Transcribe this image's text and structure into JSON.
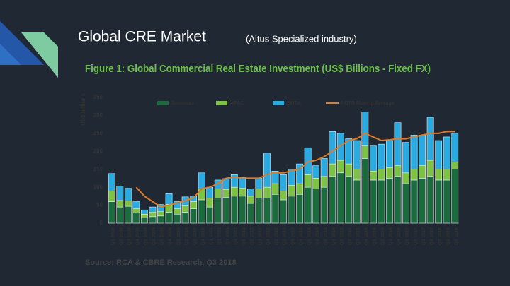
{
  "slide": {
    "title": "Global CRE Market",
    "subtitle": "(Altus Specialized industry)"
  },
  "chart_data": {
    "type": "bar",
    "stacked": true,
    "title": "Figure 1: Global Commercial Real Estate Investment (US$ Billions - Fixed FX)",
    "y_label": "US$ billions",
    "source": "Source: RCA & CBRE Research, Q3 2018",
    "categories": [
      "Q1 2008",
      "Q2 2008",
      "Q3 2008",
      "Q4 2008",
      "Q1 2009",
      "Q2 2009",
      "Q3 2009",
      "Q4 2009",
      "Q1 2010",
      "Q2 2010",
      "Q3 2010",
      "Q4 2010",
      "Q1 2011",
      "Q2 2011",
      "Q3 2011",
      "Q4 2011",
      "Q1 2012",
      "Q2 2012",
      "Q3 2012",
      "Q4 2012",
      "Q1 2013",
      "Q2 2013",
      "Q3 2013",
      "Q4 2013",
      "Q1 2014",
      "Q2 2014",
      "Q3 2014",
      "Q4 2014",
      "Q1 2015",
      "Q2 2015",
      "Q3 2015",
      "Q4 2015",
      "Q1 2016",
      "Q2 2016",
      "Q3 2016",
      "Q4 2016",
      "Q1 2017",
      "Q2 2017",
      "Q3 2017",
      "Q4 2017",
      "Q1 2018",
      "Q2 2018",
      "Q3 2018"
    ],
    "series": [
      {
        "name": "Americas",
        "color": "#1b6b3f",
        "values": [
          60,
          45,
          47,
          28,
          15,
          18,
          20,
          30,
          25,
          30,
          40,
          65,
          45,
          70,
          72,
          75,
          75,
          55,
          70,
          70,
          80,
          65,
          75,
          80,
          100,
          95,
          100,
          130,
          140,
          130,
          120,
          180,
          120,
          120,
          125,
          130,
          110,
          120,
          125,
          130,
          120,
          120,
          150
        ]
      },
      {
        "name": "APAC",
        "color": "#7dc242",
        "values": [
          30,
          18,
          15,
          12,
          10,
          12,
          12,
          22,
          15,
          18,
          20,
          30,
          25,
          25,
          22,
          25,
          22,
          20,
          25,
          30,
          30,
          25,
          30,
          30,
          35,
          30,
          30,
          35,
          35,
          35,
          30,
          35,
          25,
          30,
          30,
          30,
          30,
          30,
          35,
          45,
          30,
          30,
          20
        ]
      },
      {
        "name": "EMEA",
        "color": "#29abe2",
        "values": [
          48,
          40,
          35,
          20,
          12,
          15,
          20,
          30,
          20,
          25,
          15,
          45,
          30,
          25,
          30,
          35,
          30,
          20,
          30,
          95,
          35,
          45,
          45,
          55,
          75,
          35,
          50,
          90,
          75,
          70,
          80,
          95,
          70,
          70,
          75,
          120,
          85,
          95,
          85,
          120,
          80,
          90,
          80
        ]
      },
      {
        "name": "4-QTR Moving Average",
        "color": "#e07b2a",
        "type": "line",
        "values": [
          null,
          null,
          null,
          100,
          75,
          60,
          45,
          50,
          55,
          62,
          70,
          95,
          100,
          110,
          125,
          128,
          125,
          125,
          125,
          135,
          140,
          140,
          145,
          150,
          170,
          175,
          185,
          200,
          215,
          230,
          235,
          250,
          240,
          230,
          232,
          235,
          235,
          240,
          245,
          250,
          250,
          255,
          255
        ]
      }
    ],
    "ylim": [
      0,
      350
    ],
    "yticks": [
      0,
      50,
      100,
      150,
      200,
      250,
      300,
      350
    ],
    "grid": false
  }
}
